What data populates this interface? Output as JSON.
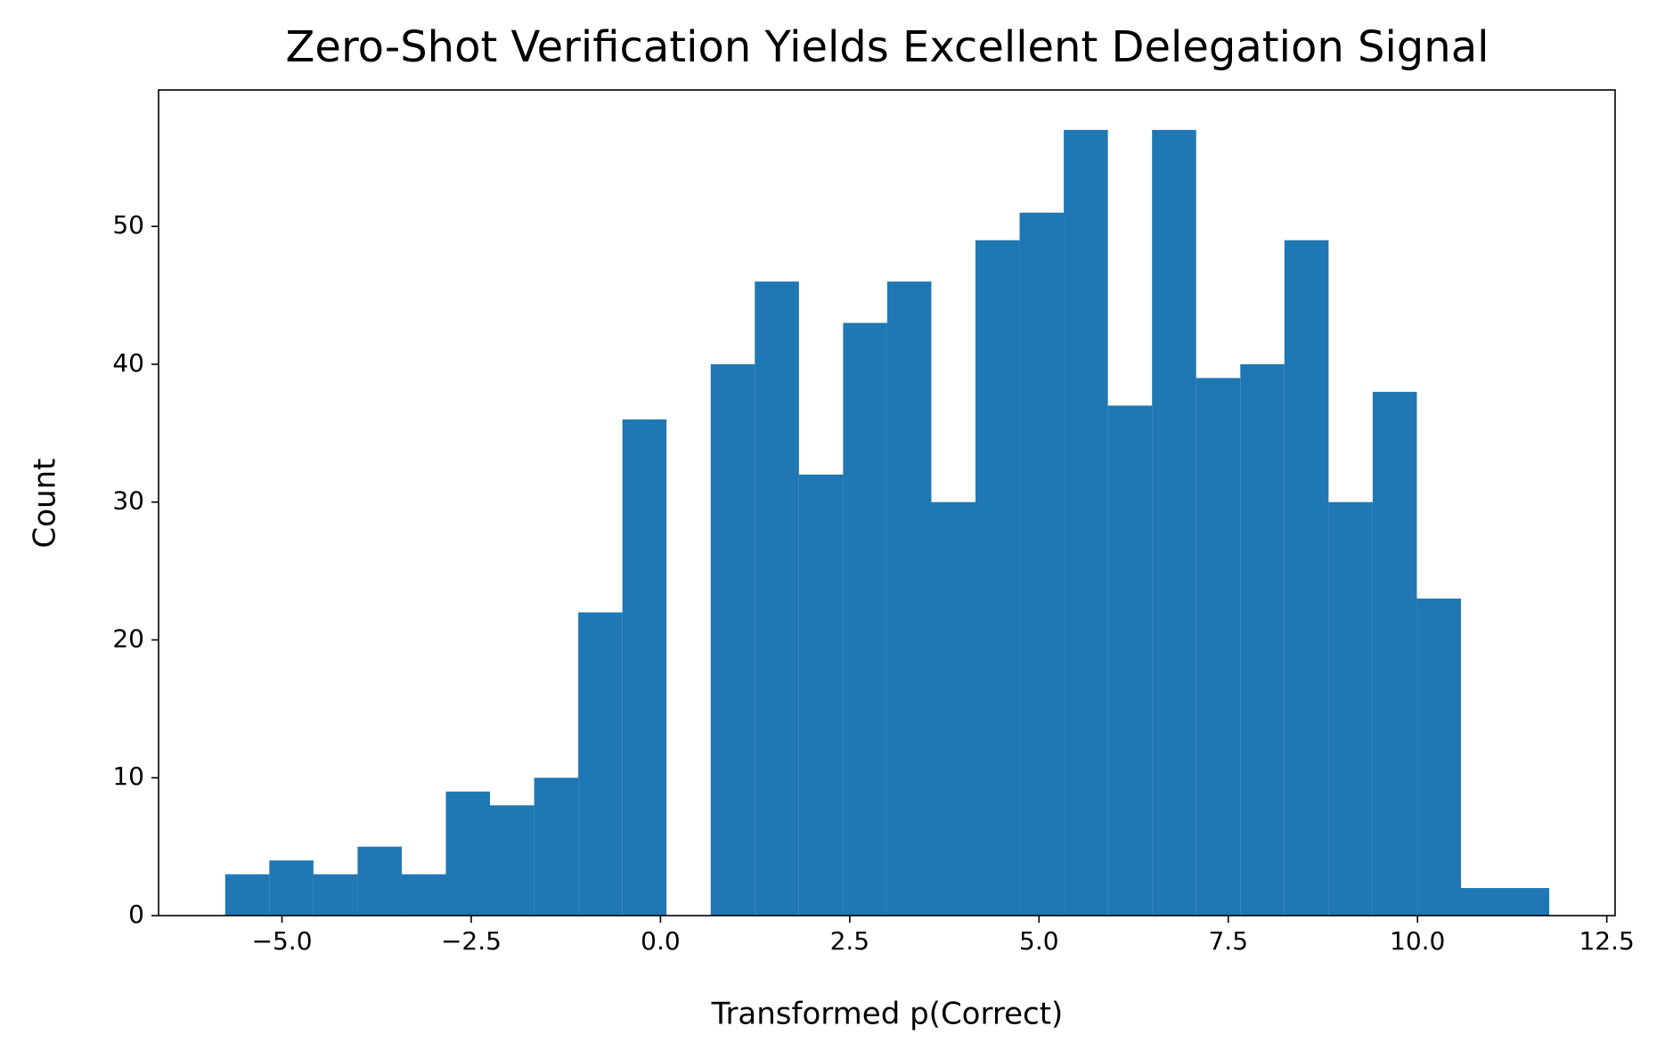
{
  "chart_data": {
    "type": "histogram",
    "title": "Zero-Shot Verification Yields Excellent Delegation Signal",
    "xlabel": "Transformed p(Correct)",
    "ylabel": "Count",
    "bins": [
      -5.75,
      -5.167,
      -4.584,
      -4.001,
      -3.418,
      -2.835,
      -2.252,
      -1.669,
      -1.086,
      -0.503,
      0.08,
      0.663,
      1.246,
      1.829,
      2.412,
      2.995,
      3.578,
      4.161,
      4.744,
      5.327,
      5.91,
      6.493,
      7.076,
      7.659,
      8.242,
      8.825,
      9.408,
      9.991,
      10.574,
      11.157,
      11.74
    ],
    "values": [
      3,
      4,
      3,
      5,
      3,
      9,
      8,
      10,
      22,
      36,
      0,
      40,
      46,
      32,
      43,
      46,
      30,
      49,
      51,
      57,
      37,
      57,
      39,
      40,
      49,
      30,
      38,
      23,
      2,
      2
    ],
    "color": "#1f77b4",
    "xlim": [
      -6.63,
      12.61
    ],
    "ylim": [
      0,
      59.9
    ],
    "xticks": [
      {
        "value": -5,
        "label": "−5.0"
      },
      {
        "value": -2.5,
        "label": "−2.5"
      },
      {
        "value": 0,
        "label": "0.0"
      },
      {
        "value": 2.5,
        "label": "2.5"
      },
      {
        "value": 5,
        "label": "5.0"
      },
      {
        "value": 7.5,
        "label": "7.5"
      },
      {
        "value": 10,
        "label": "10.0"
      },
      {
        "value": 12.5,
        "label": "12.5"
      }
    ],
    "yticks": [
      0,
      10,
      20,
      30,
      40,
      50
    ]
  }
}
